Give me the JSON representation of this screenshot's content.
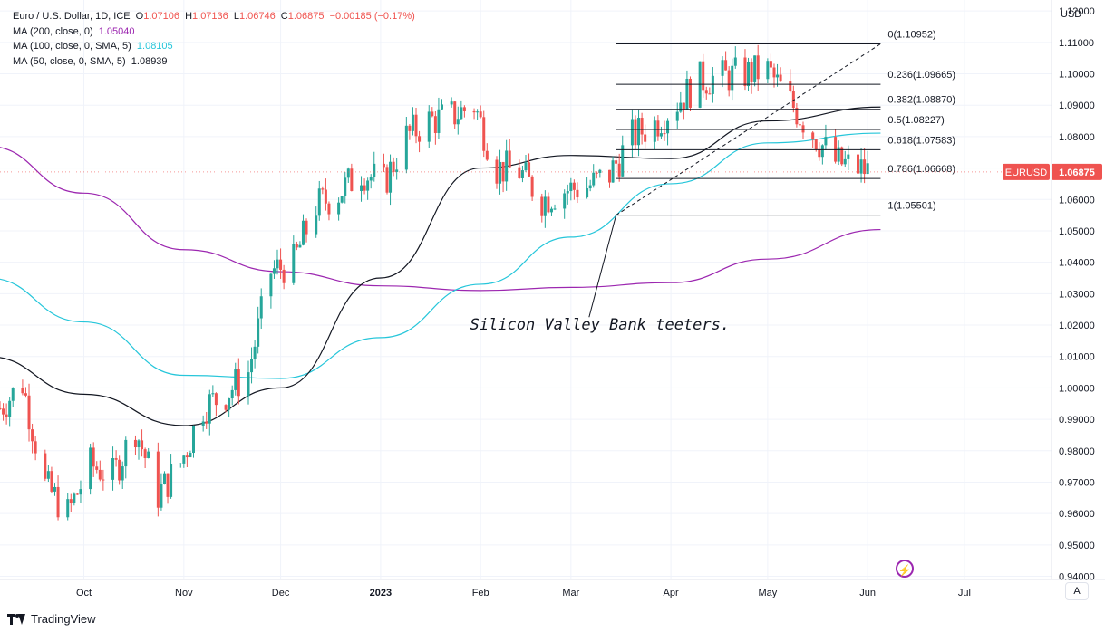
{
  "legend": {
    "main": {
      "title": "Euro / U.S. Dollar, 1D, ICE",
      "o_label": "O",
      "o": "1.07106",
      "h_label": "H",
      "h": "1.07136",
      "l_label": "L",
      "l": "1.06746",
      "c_label": "C",
      "c": "1.06875",
      "change": "−0.00185 (−0.17%)"
    },
    "ma200": {
      "label": "MA (200, close, 0)",
      "value": "1.05040"
    },
    "ma100": {
      "label": "MA (100, close, 0, SMA, 5)",
      "value": "1.08105"
    },
    "ma50": {
      "label": "MA (50, close, 0, SMA, 5)",
      "value": "1.08939"
    }
  },
  "colors": {
    "up": "#26a69a",
    "down": "#ef5350",
    "ma200": "#9c27b0",
    "ma100": "#26c6da",
    "ma50": "#131722",
    "grid": "#f0f3fa",
    "price_badge": "#ef5350"
  },
  "axis": {
    "currency": "USD",
    "mode_button": "A"
  },
  "price_badge": {
    "symbol": "EURUSD",
    "price": "1.06875"
  },
  "annotation": {
    "text": "Silicon Valley Bank teeters."
  },
  "branding": {
    "name": "TradingView"
  },
  "chart_data": {
    "type": "candlestick",
    "title": "Euro / U.S. Dollar, 1D, ICE",
    "ylabel": "USD",
    "ylim": [
      0.939,
      1.1235
    ],
    "y_ticks": [
      "1.12000",
      "1.11000",
      "1.10000",
      "1.09000",
      "1.08000",
      "1.07000",
      "1.06000",
      "1.05000",
      "1.04000",
      "1.03000",
      "1.02000",
      "1.01000",
      "1.00000",
      "0.99000",
      "0.98000",
      "0.97000",
      "0.96000",
      "0.95000",
      "0.94000"
    ],
    "x_ticks": [
      {
        "label": "Oct",
        "date": "2022-10-01"
      },
      {
        "label": "Nov",
        "date": "2022-11-01"
      },
      {
        "label": "Dec",
        "date": "2022-12-01"
      },
      {
        "label": "2023",
        "date": "2023-01-01",
        "bold": true
      },
      {
        "label": "Feb",
        "date": "2023-02-01"
      },
      {
        "label": "Mar",
        "date": "2023-03-01"
      },
      {
        "label": "Apr",
        "date": "2023-04-01"
      },
      {
        "label": "May",
        "date": "2023-05-01"
      },
      {
        "label": "Jun",
        "date": "2023-06-01"
      },
      {
        "label": "Jul",
        "date": "2023-07-01"
      }
    ],
    "x_range": [
      "2022-09-05",
      "2023-07-28"
    ],
    "grid": true,
    "closes": [
      [
        "2022-09-05",
        0.9935
      ],
      [
        "2022-09-12",
        1.0015
      ],
      [
        "2022-09-19",
        0.969
      ],
      [
        "2022-09-26",
        0.96
      ],
      [
        "2022-10-03",
        0.9755
      ],
      [
        "2022-10-10",
        0.972
      ],
      [
        "2022-10-17",
        0.987
      ],
      [
        "2022-10-24",
        0.966
      ],
      [
        "2022-10-31",
        0.976
      ],
      [
        "2022-11-07",
        0.994
      ],
      [
        "2022-11-14",
        0.998
      ],
      [
        "2022-11-21",
        1.005
      ],
      [
        "2022-11-28",
        1.037
      ],
      [
        "2022-12-05",
        1.04
      ],
      [
        "2022-12-12",
        1.058
      ],
      [
        "2022-12-19",
        1.062
      ],
      [
        "2022-12-26",
        1.069
      ],
      [
        "2023-01-02",
        1.065
      ],
      [
        "2023-01-09",
        1.08
      ],
      [
        "2023-01-16",
        1.085
      ],
      [
        "2023-01-23",
        1.0865
      ],
      [
        "2023-01-30",
        1.09
      ],
      [
        "2023-02-06",
        1.07
      ],
      [
        "2023-02-13",
        1.069
      ],
      [
        "2023-02-20",
        1.06
      ],
      [
        "2023-02-27",
        1.063
      ],
      [
        "2023-03-06",
        1.064
      ],
      [
        "2023-03-13",
        1.068
      ],
      [
        "2023-03-20",
        1.08
      ],
      [
        "2023-03-27",
        1.084
      ],
      [
        "2023-04-03",
        1.091
      ],
      [
        "2023-04-10",
        1.098
      ],
      [
        "2023-04-17",
        1.099
      ],
      [
        "2023-04-24",
        1.1
      ],
      [
        "2023-05-01",
        1.101
      ],
      [
        "2023-05-08",
        1.091
      ],
      [
        "2023-05-15",
        1.081
      ],
      [
        "2023-05-22",
        1.072
      ],
      [
        "2023-05-29",
        1.07
      ],
      [
        "2023-06-02",
        1.06875
      ]
    ],
    "series": [
      {
        "name": "MA (200, close, 0)",
        "points": [
          [
            "2022-09-01",
            1.077
          ],
          [
            "2022-10-01",
            1.062
          ],
          [
            "2022-11-01",
            1.044
          ],
          [
            "2022-12-01",
            1.037
          ],
          [
            "2023-01-01",
            1.0325
          ],
          [
            "2023-02-01",
            1.031
          ],
          [
            "2023-03-01",
            1.032
          ],
          [
            "2023-04-01",
            1.0335
          ],
          [
            "2023-05-01",
            1.041
          ],
          [
            "2023-06-05",
            1.0504
          ]
        ]
      },
      {
        "name": "MA (100, close, 0, SMA, 5)",
        "points": [
          [
            "2022-09-01",
            1.035
          ],
          [
            "2022-10-01",
            1.021
          ],
          [
            "2022-11-01",
            1.004
          ],
          [
            "2022-12-01",
            1.003
          ],
          [
            "2023-01-01",
            1.016
          ],
          [
            "2023-02-01",
            1.033
          ],
          [
            "2023-03-01",
            1.048
          ],
          [
            "2023-04-01",
            1.065
          ],
          [
            "2023-05-01",
            1.078
          ],
          [
            "2023-06-05",
            1.0811
          ]
        ]
      },
      {
        "name": "MA (50, close, 0, SMA, 5)",
        "points": [
          [
            "2022-09-01",
            1.01
          ],
          [
            "2022-10-01",
            0.998
          ],
          [
            "2022-11-01",
            0.988
          ],
          [
            "2022-12-01",
            1.0
          ],
          [
            "2023-01-01",
            1.035
          ],
          [
            "2023-02-01",
            1.07
          ],
          [
            "2023-03-01",
            1.074
          ],
          [
            "2023-04-01",
            1.073
          ],
          [
            "2023-05-01",
            1.085
          ],
          [
            "2023-06-05",
            1.0894
          ]
        ]
      }
    ],
    "fibonacci": {
      "start": [
        "2023-03-15",
        1.05501
      ],
      "end": [
        "2023-06-05",
        1.10952
      ],
      "levels": [
        {
          "label": "0(1.10952)",
          "value": 1.10952
        },
        {
          "label": "0.236(1.09665)",
          "value": 1.09665
        },
        {
          "label": "0.382(1.08870)",
          "value": 1.0887
        },
        {
          "label": "0.5(1.08227)",
          "value": 1.08227
        },
        {
          "label": "0.618(1.07583)",
          "value": 1.07583
        },
        {
          "label": "0.786(1.06668)",
          "value": 1.06668
        },
        {
          "label": "1(1.05501)",
          "value": 1.05501
        }
      ]
    },
    "annotations": [
      {
        "text": "Silicon Valley Bank teeters.",
        "date": "2023-03-10",
        "value": 1.0185,
        "points_to": [
          "2023-03-15",
          1.055
        ]
      }
    ],
    "last_price": 1.06875
  }
}
